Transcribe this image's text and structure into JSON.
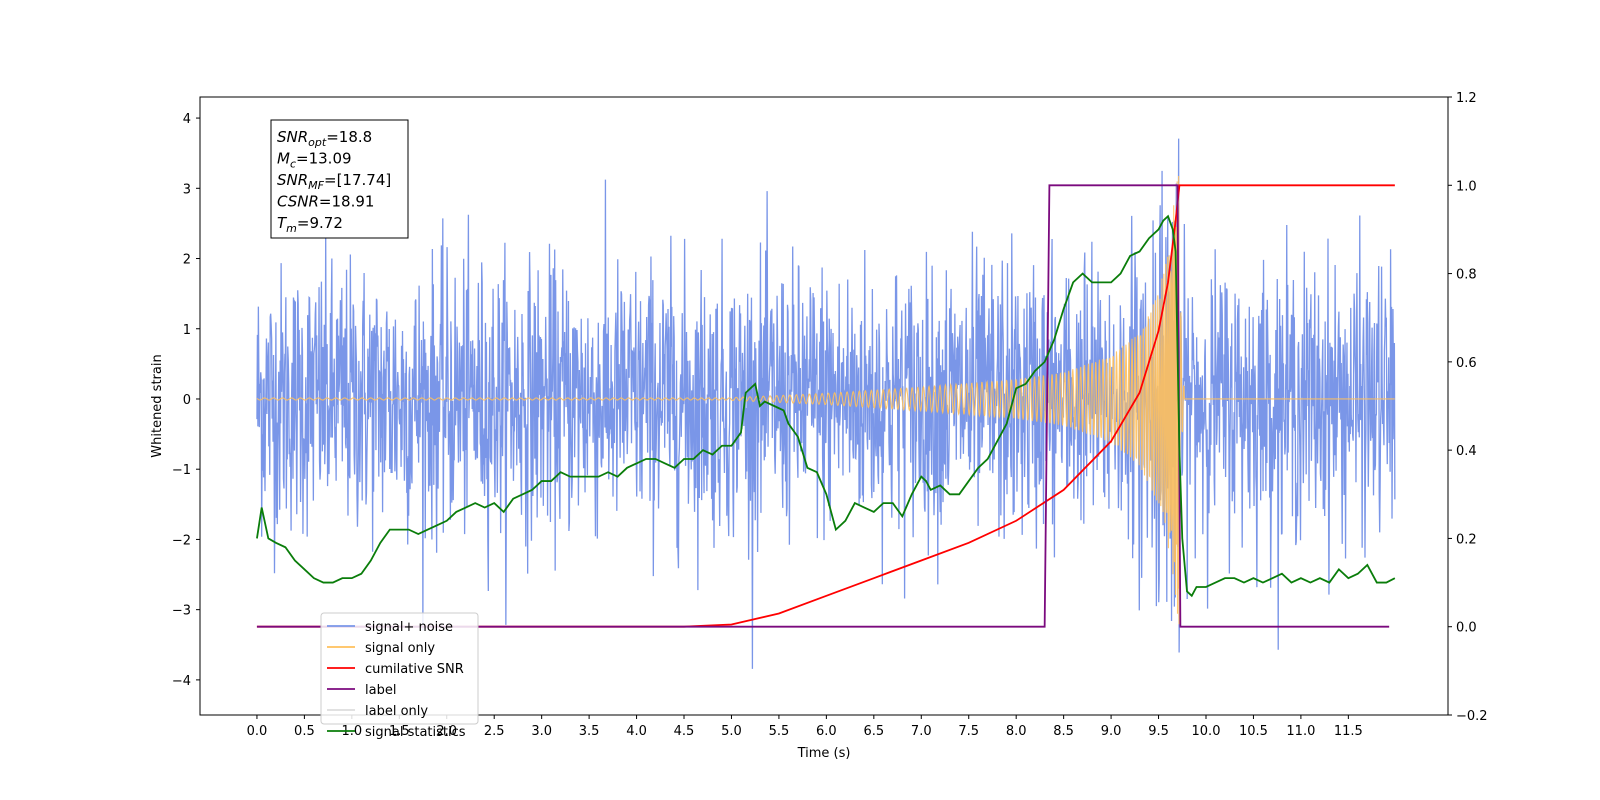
{
  "chart_data": {
    "type": "line",
    "xlabel": "Time (s)",
    "ylabel": "Whitened strain",
    "xlim": [
      -0.6,
      12.55
    ],
    "ylim": [
      -4.5,
      4.3
    ],
    "ylim_right": [
      -0.2,
      1.2
    ],
    "x_ticks": [
      "0.0",
      "0.5",
      "1.0",
      "1.5",
      "2.0",
      "2.5",
      "3.0",
      "3.5",
      "4.0",
      "4.5",
      "5.0",
      "5.5",
      "6.0",
      "6.5",
      "7.0",
      "7.5",
      "8.0",
      "8.5",
      "9.0",
      "9.5",
      "10.0",
      "10.5",
      "11.0",
      "11.5"
    ],
    "y_ticks_left": [
      "4",
      "3",
      "2",
      "1",
      "0",
      "−1",
      "−2",
      "−3",
      "−4"
    ],
    "y_ticks_right": [
      "1.2",
      "1.0",
      "0.8",
      "0.6",
      "0.4",
      "0.2",
      "0.0",
      "−0.2"
    ],
    "grid": false,
    "legend_position": "lower-left",
    "annotation": {
      "lines": [
        {
          "sym": "SNR",
          "sub": "opt",
          "value": "=18.8"
        },
        {
          "sym": "M",
          "sub": "c",
          "value": "=13.09"
        },
        {
          "sym": "SNR",
          "sub": "MF",
          "value": "=[17.74]"
        },
        {
          "sym": "CSNR",
          "sub": "",
          "value": "=18.91"
        },
        {
          "sym": "T",
          "sub": "m",
          "value": "=9.72"
        }
      ]
    },
    "legend": [
      {
        "name": "signal+ noise",
        "color": "#7a96e8"
      },
      {
        "name": "signal only",
        "color": "#ffc05c"
      },
      {
        "name": "cumilative SNR",
        "color": "#ff0000"
      },
      {
        "name": "label",
        "color": "#7b0a7e"
      },
      {
        "name": "label only",
        "color": "#dddddd"
      },
      {
        "name": "signal statistics",
        "color": "#0a7d0a"
      }
    ],
    "series": [
      {
        "name": "signal+ noise",
        "axis": "left",
        "color": "#7a96e8",
        "description_values": {
          "noise_sigma": 0.95,
          "x_start": 0.0,
          "x_end": 11.99
        }
      },
      {
        "name": "signal only",
        "axis": "left",
        "color": "#ffc05c",
        "envelope": {
          "x": [
            5.0,
            6.0,
            7.0,
            8.0,
            8.5,
            9.0,
            9.3,
            9.5,
            9.6,
            9.7
          ],
          "amp": [
            0.02,
            0.08,
            0.17,
            0.28,
            0.38,
            0.62,
            0.95,
            1.5,
            2.1,
            3.2
          ]
        },
        "merger_time": 9.72
      },
      {
        "name": "cumilative SNR",
        "axis": "right",
        "color": "#ff0000",
        "x": [
          0.0,
          4.5,
          5.0,
          5.5,
          6.0,
          6.5,
          7.0,
          7.5,
          8.0,
          8.5,
          9.0,
          9.3,
          9.5,
          9.6,
          9.68,
          9.72,
          11.99
        ],
        "y": [
          0.0,
          0.0,
          0.005,
          0.03,
          0.07,
          0.11,
          0.15,
          0.19,
          0.24,
          0.31,
          0.42,
          0.53,
          0.67,
          0.78,
          0.92,
          1.0,
          1.0
        ]
      },
      {
        "name": "label",
        "axis": "right",
        "color": "#7b0a7e",
        "x": [
          0.0,
          8.3,
          8.35,
          9.7,
          9.73,
          11.93
        ],
        "y": [
          0.0,
          0.0,
          1.0,
          1.0,
          0.0,
          0.0
        ]
      },
      {
        "name": "signal statistics",
        "axis": "right",
        "color": "#0a7d0a",
        "x": [
          0.0,
          0.05,
          0.12,
          0.2,
          0.3,
          0.4,
          0.5,
          0.6,
          0.7,
          0.8,
          0.9,
          1.0,
          1.1,
          1.2,
          1.3,
          1.4,
          1.5,
          1.6,
          1.7,
          1.8,
          1.9,
          2.0,
          2.1,
          2.2,
          2.3,
          2.4,
          2.5,
          2.6,
          2.7,
          2.8,
          2.9,
          3.0,
          3.1,
          3.2,
          3.3,
          3.4,
          3.5,
          3.6,
          3.7,
          3.8,
          3.9,
          4.0,
          4.1,
          4.2,
          4.3,
          4.4,
          4.5,
          4.6,
          4.7,
          4.8,
          4.9,
          5.0,
          5.1,
          5.15,
          5.25,
          5.3,
          5.35,
          5.45,
          5.55,
          5.6,
          5.7,
          5.8,
          5.9,
          6.0,
          6.1,
          6.2,
          6.3,
          6.4,
          6.5,
          6.6,
          6.7,
          6.8,
          6.9,
          7.0,
          7.05,
          7.1,
          7.2,
          7.3,
          7.4,
          7.5,
          7.6,
          7.7,
          7.8,
          7.9,
          8.0,
          8.1,
          8.2,
          8.3,
          8.4,
          8.5,
          8.6,
          8.7,
          8.8,
          8.9,
          9.0,
          9.1,
          9.2,
          9.3,
          9.4,
          9.5,
          9.55,
          9.6,
          9.65,
          9.68,
          9.72,
          9.75,
          9.8,
          9.85,
          9.9,
          10.0,
          10.1,
          10.2,
          10.3,
          10.4,
          10.5,
          10.6,
          10.7,
          10.8,
          10.9,
          11.0,
          11.1,
          11.2,
          11.3,
          11.4,
          11.5,
          11.6,
          11.7,
          11.8,
          11.9,
          11.99
        ],
        "y": [
          0.2,
          0.27,
          0.2,
          0.19,
          0.18,
          0.15,
          0.13,
          0.11,
          0.1,
          0.1,
          0.11,
          0.11,
          0.12,
          0.15,
          0.19,
          0.22,
          0.22,
          0.22,
          0.21,
          0.22,
          0.23,
          0.24,
          0.26,
          0.27,
          0.28,
          0.27,
          0.28,
          0.26,
          0.29,
          0.3,
          0.31,
          0.33,
          0.33,
          0.35,
          0.34,
          0.34,
          0.34,
          0.34,
          0.35,
          0.34,
          0.36,
          0.37,
          0.38,
          0.38,
          0.37,
          0.36,
          0.38,
          0.38,
          0.4,
          0.39,
          0.41,
          0.41,
          0.44,
          0.53,
          0.55,
          0.5,
          0.51,
          0.5,
          0.49,
          0.46,
          0.43,
          0.36,
          0.35,
          0.3,
          0.22,
          0.24,
          0.28,
          0.27,
          0.26,
          0.28,
          0.28,
          0.25,
          0.3,
          0.34,
          0.33,
          0.31,
          0.32,
          0.3,
          0.3,
          0.33,
          0.36,
          0.38,
          0.42,
          0.46,
          0.54,
          0.55,
          0.58,
          0.6,
          0.65,
          0.72,
          0.78,
          0.8,
          0.78,
          0.78,
          0.78,
          0.8,
          0.84,
          0.85,
          0.88,
          0.9,
          0.92,
          0.93,
          0.9,
          0.85,
          0.4,
          0.2,
          0.08,
          0.07,
          0.09,
          0.09,
          0.1,
          0.11,
          0.11,
          0.1,
          0.11,
          0.1,
          0.11,
          0.12,
          0.1,
          0.11,
          0.1,
          0.11,
          0.1,
          0.13,
          0.11,
          0.12,
          0.14,
          0.1,
          0.1,
          0.11
        ]
      }
    ]
  }
}
